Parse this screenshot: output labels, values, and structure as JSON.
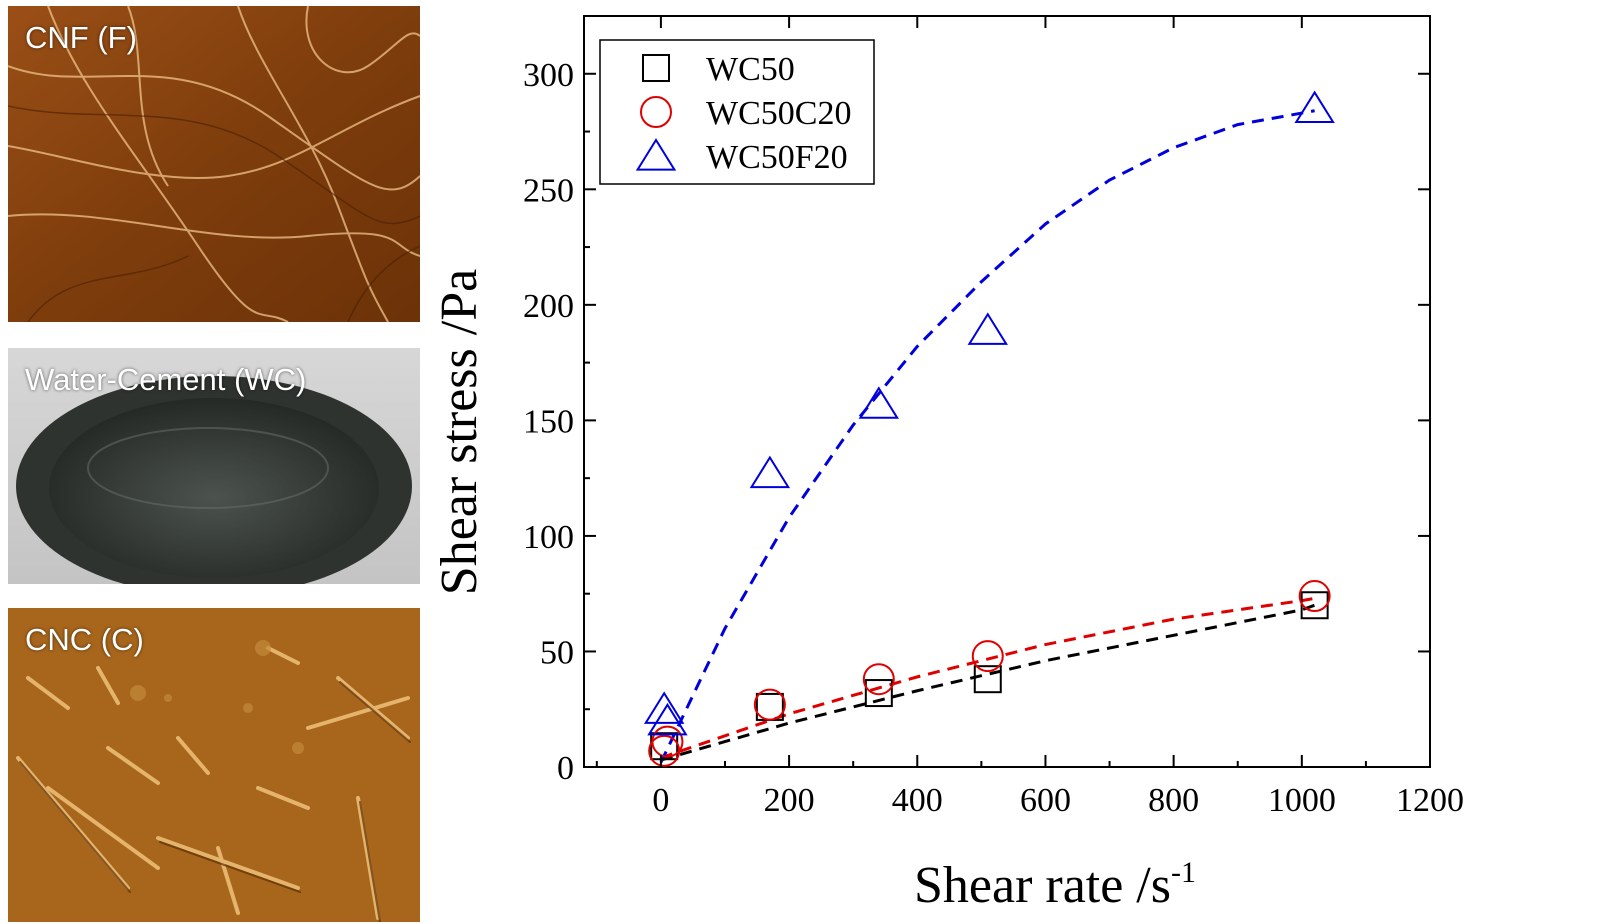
{
  "panels": [
    {
      "label": "CNF (F)",
      "kind": "afm-fibrils",
      "color": "#8a4510"
    },
    {
      "label": "Water-Cement (WC)",
      "kind": "photo-cement",
      "color": "#3a3f3b"
    },
    {
      "label": "CNC (C)",
      "kind": "afm-crystals",
      "color": "#a86a1e"
    }
  ],
  "chart_data": {
    "type": "scatter",
    "xlabel": "Shear rate /s",
    "xlabel_sup": "-1",
    "ylabel": "Shear stress /Pa",
    "xlim": [
      -120,
      1200
    ],
    "ylim": [
      0,
      325
    ],
    "xticks": [
      0,
      200,
      400,
      600,
      800,
      1000,
      1200
    ],
    "yticks": [
      0,
      50,
      100,
      150,
      200,
      250,
      300
    ],
    "legend_position": "top-left",
    "series": [
      {
        "name": "WC50",
        "marker": "square",
        "color": "#000000",
        "x": [
          5.1,
          170,
          340,
          510,
          1020
        ],
        "y": [
          9,
          26,
          32,
          38,
          70
        ],
        "fit_x": [
          0,
          200,
          400,
          600,
          800,
          1000,
          1020
        ],
        "fit_y": [
          3,
          19,
          33,
          46,
          57,
          68,
          70
        ]
      },
      {
        "name": "WC50C20",
        "marker": "circle",
        "color": "#e00000",
        "x": [
          5.1,
          10.2,
          170,
          340,
          510,
          1020
        ],
        "y": [
          7,
          11,
          27,
          38,
          48,
          74
        ],
        "fit_x": [
          0,
          200,
          400,
          600,
          800,
          1000,
          1020
        ],
        "fit_y": [
          4,
          23,
          39,
          53,
          64,
          72,
          73
        ]
      },
      {
        "name": "WC50F20",
        "marker": "triangle",
        "color": "#0000dd",
        "x": [
          5.1,
          10.2,
          170,
          340,
          510,
          1020
        ],
        "y": [
          25,
          20,
          127,
          157,
          189,
          285
        ],
        "fit_x": [
          0,
          100,
          200,
          300,
          400,
          500,
          600,
          700,
          800,
          900,
          1000,
          1020
        ],
        "fit_y": [
          2,
          60,
          108,
          148,
          182,
          210,
          235,
          254,
          268,
          278,
          283,
          284
        ]
      }
    ]
  }
}
